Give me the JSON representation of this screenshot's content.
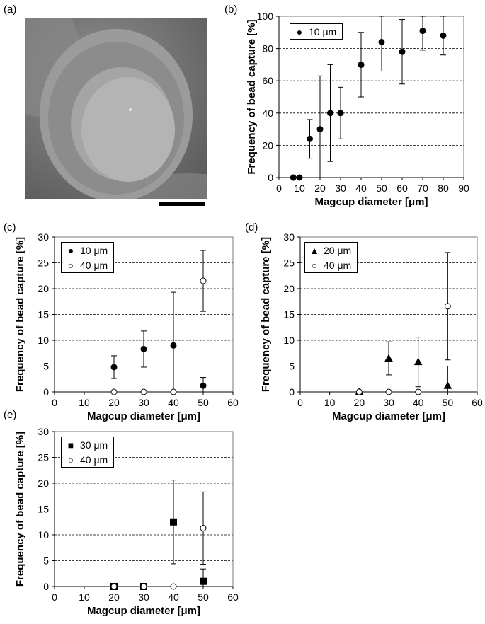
{
  "panels": {
    "a": "(a)",
    "b": "(b)",
    "c": "(c)",
    "d": "(d)",
    "e": "(e)"
  },
  "colors": {
    "marker": "#000000",
    "open_fill": "#ffffff",
    "sem_bg": "#6e6e6e"
  },
  "chart_data": [
    {
      "id": "b",
      "type": "scatter",
      "xlabel": "Magcup diameter [μm]",
      "ylabel": "Frequency of bead capture [%]",
      "xlim": [
        0,
        90
      ],
      "ylim": [
        0,
        100
      ],
      "xticks": [
        0,
        10,
        20,
        30,
        40,
        50,
        60,
        70,
        80,
        90
      ],
      "yticks": [
        0,
        20,
        40,
        60,
        80,
        100
      ],
      "grid": "horizontal dashed",
      "legend": "top-left",
      "series": [
        {
          "name": "10 μm",
          "marker": "filled-circle",
          "x": [
            7,
            10,
            15,
            20,
            25,
            30,
            40,
            50,
            60,
            70,
            80
          ],
          "y": [
            0,
            0,
            24,
            30,
            40,
            40,
            70,
            84,
            78,
            91,
            88
          ],
          "err": [
            0,
            0,
            12,
            33,
            30,
            16,
            20,
            18,
            20,
            12,
            12
          ]
        }
      ]
    },
    {
      "id": "c",
      "type": "scatter",
      "xlabel": "Magcup diameter [μm]",
      "ylabel": "Frequency of bead capture [%]",
      "xlim": [
        0,
        60
      ],
      "ylim": [
        0,
        30
      ],
      "xticks": [
        0,
        10,
        20,
        30,
        40,
        50,
        60
      ],
      "yticks": [
        0,
        5,
        10,
        15,
        20,
        25,
        30
      ],
      "grid": "horizontal dashed",
      "legend": "top-left",
      "series": [
        {
          "name": "10 μm",
          "marker": "filled-circle",
          "x": [
            20,
            30,
            40,
            50
          ],
          "y": [
            4.8,
            8.3,
            9.0,
            1.2
          ],
          "err": [
            2.2,
            3.5,
            10.3,
            1.6
          ]
        },
        {
          "name": "40 μm",
          "marker": "open-circle",
          "x": [
            20,
            30,
            40,
            50
          ],
          "y": [
            0,
            0,
            0,
            21.5
          ],
          "err": [
            0,
            0,
            0,
            5.9
          ]
        }
      ]
    },
    {
      "id": "d",
      "type": "scatter",
      "xlabel": "Magcup diameter [μm]",
      "ylabel": "Frequency of bead capture [%]",
      "xlim": [
        0,
        60
      ],
      "ylim": [
        0,
        30
      ],
      "xticks": [
        0,
        10,
        20,
        30,
        40,
        50,
        60
      ],
      "yticks": [
        0,
        5,
        10,
        15,
        20,
        25,
        30
      ],
      "grid": "horizontal dashed",
      "legend": "top-left",
      "series": [
        {
          "name": "20 μm",
          "marker": "filled-triangle",
          "x": [
            20,
            30,
            40,
            50
          ],
          "y": [
            0,
            6.5,
            5.8,
            1.2
          ],
          "err": [
            0,
            3.2,
            4.8,
            3.8
          ]
        },
        {
          "name": "40 μm",
          "marker": "open-circle",
          "x": [
            20,
            30,
            40,
            50
          ],
          "y": [
            0,
            0,
            0,
            16.6
          ],
          "err": [
            0,
            0,
            0,
            10.4
          ]
        }
      ]
    },
    {
      "id": "e",
      "type": "scatter",
      "xlabel": "Magcup diameter [μm]",
      "ylabel": "Frequency of bead capture [%]",
      "xlim": [
        0,
        60
      ],
      "ylim": [
        0,
        30
      ],
      "xticks": [
        0,
        10,
        20,
        30,
        40,
        50,
        60
      ],
      "yticks": [
        0,
        5,
        10,
        15,
        20,
        25,
        30
      ],
      "grid": "horizontal dashed",
      "legend": "top-left",
      "series": [
        {
          "name": "30 μm",
          "marker": "filled-square",
          "x": [
            20,
            30,
            40,
            50
          ],
          "y": [
            0,
            0,
            12.5,
            1.0
          ],
          "err": [
            0,
            0,
            8.1,
            2.4
          ]
        },
        {
          "name": "40 μm",
          "marker": "open-circle",
          "x": [
            20,
            30,
            40,
            50
          ],
          "y": [
            0,
            0,
            0,
            11.3
          ],
          "err": [
            0,
            0,
            0,
            7.0
          ]
        }
      ]
    }
  ]
}
